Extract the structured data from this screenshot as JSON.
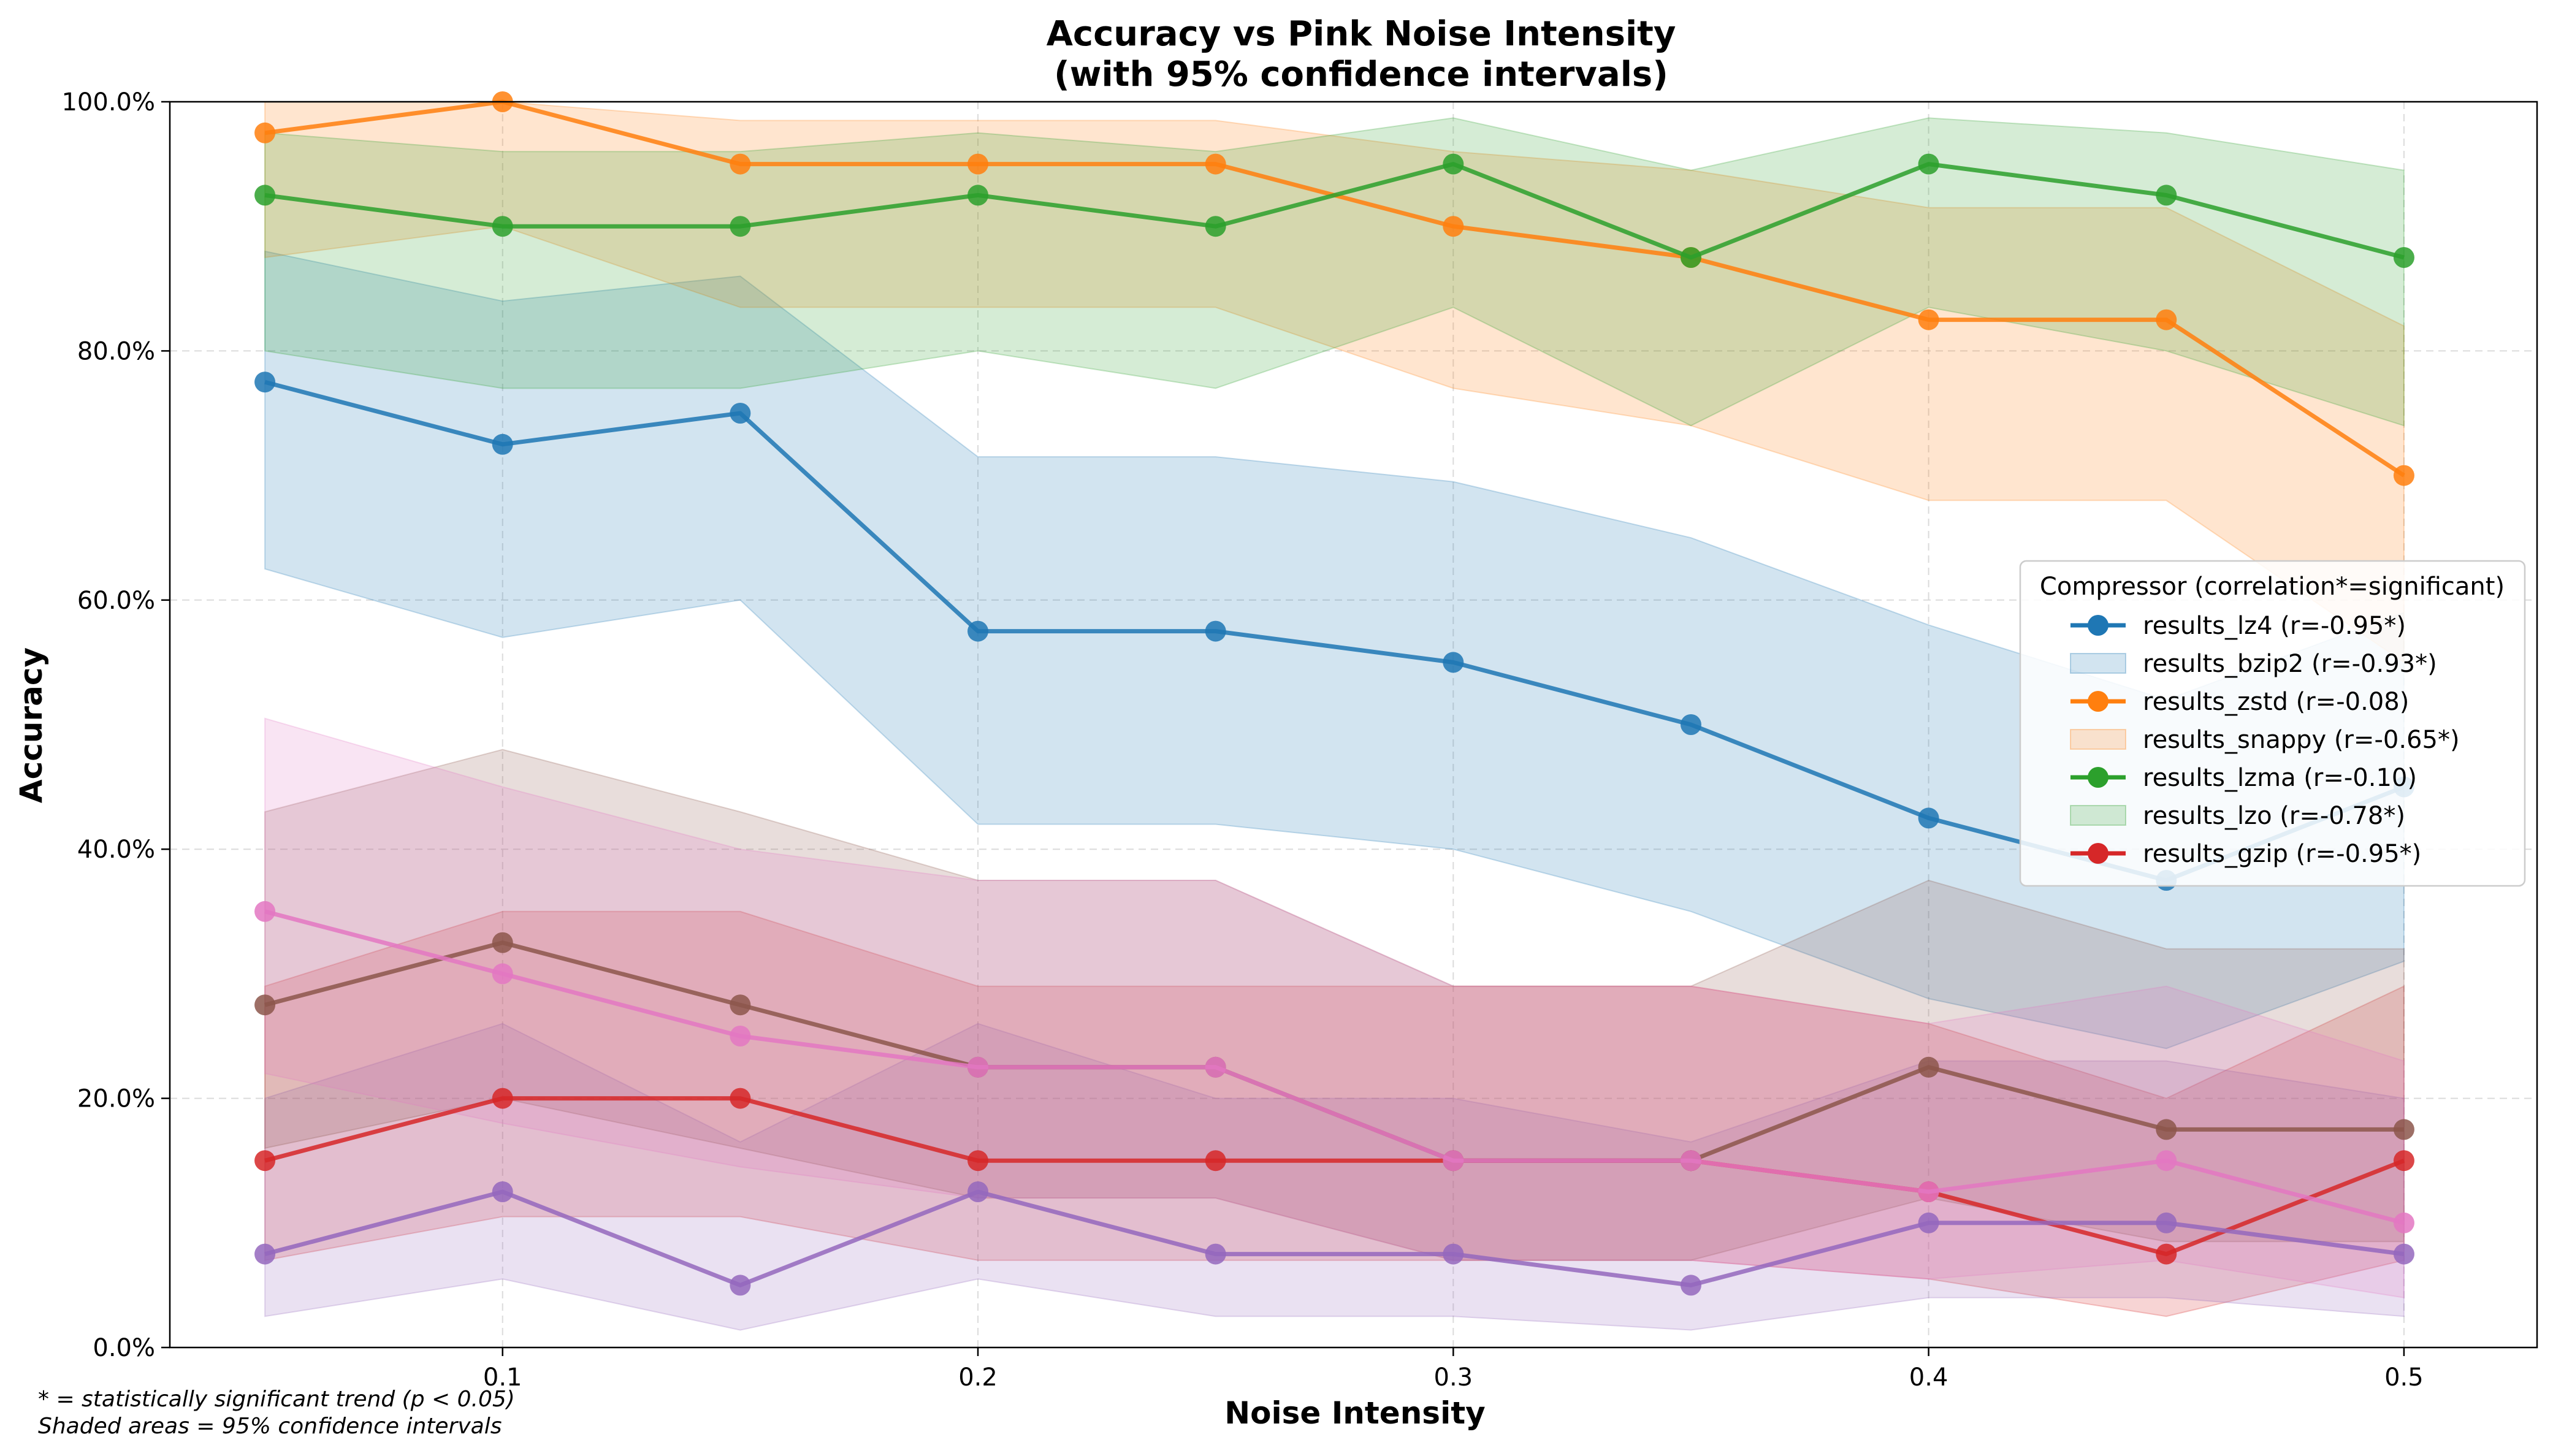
{
  "chart_data": {
    "type": "line",
    "title": "Accuracy vs Pink Noise Intensity",
    "subtitle": "(with 95% confidence intervals)",
    "xlabel": "Noise Intensity",
    "ylabel": "Accuracy",
    "xlim": [
      0.03,
      0.528
    ],
    "ylim": [
      0,
      1
    ],
    "x_ticks": [
      0.1,
      0.2,
      0.3,
      0.4,
      0.5
    ],
    "x_tick_labels": [
      "0.1",
      "0.2",
      "0.3",
      "0.4",
      "0.5"
    ],
    "y_ticks": [
      0,
      0.2,
      0.4,
      0.6,
      0.8,
      1.0
    ],
    "y_tick_labels": [
      "0.0%",
      "20.0%",
      "40.0%",
      "60.0%",
      "80.0%",
      "100.0%"
    ],
    "grid": true,
    "legend_title": "Compressor (correlation*=significant)",
    "legend_placement": "center-right",
    "legend_entries": [
      {
        "label": "results_lz4 (r=-0.95*)",
        "kind": "line",
        "color": "#1f77b4"
      },
      {
        "label": "results_bzip2 (r=-0.93*)",
        "kind": "band",
        "color": "#1f77b4"
      },
      {
        "label": "results_zstd (r=-0.08)",
        "kind": "line",
        "color": "#ff7f0e"
      },
      {
        "label": "results_snappy (r=-0.65*)",
        "kind": "band",
        "color": "#ff7f0e"
      },
      {
        "label": "results_lzma (r=-0.10)",
        "kind": "line",
        "color": "#2ca02c"
      },
      {
        "label": "results_lzo (r=-0.78*)",
        "kind": "band",
        "color": "#2ca02c"
      },
      {
        "label": "results_gzip (r=-0.95*)",
        "kind": "line",
        "color": "#d62728"
      }
    ],
    "x": [
      0.05,
      0.1,
      0.15,
      0.2,
      0.25,
      0.3,
      0.35,
      0.4,
      0.45,
      0.5
    ],
    "series": [
      {
        "color": "#1f77b4",
        "values": [
          0.775,
          0.725,
          0.75,
          0.575,
          0.575,
          0.55,
          0.5,
          0.425,
          0.375,
          0.45
        ],
        "ci_low": [
          0.625,
          0.57,
          0.6,
          0.42,
          0.42,
          0.4,
          0.35,
          0.28,
          0.24,
          0.31
        ],
        "ci_high": [
          0.88,
          0.84,
          0.86,
          0.715,
          0.715,
          0.695,
          0.65,
          0.58,
          0.52,
          0.59
        ]
      },
      {
        "color": "#ff7f0e",
        "values": [
          0.975,
          1.0,
          0.95,
          0.95,
          0.95,
          0.9,
          0.875,
          0.825,
          0.825,
          0.7
        ],
        "ci_low": [
          0.875,
          0.9,
          0.835,
          0.835,
          0.835,
          0.77,
          0.74,
          0.68,
          0.68,
          0.55
        ],
        "ci_high": [
          1.0,
          1.0,
          0.985,
          0.985,
          0.985,
          0.96,
          0.945,
          0.915,
          0.915,
          0.82
        ]
      },
      {
        "color": "#2ca02c",
        "values": [
          0.925,
          0.9,
          0.9,
          0.925,
          0.9,
          0.95,
          0.875,
          0.95,
          0.925,
          0.875
        ],
        "ci_low": [
          0.8,
          0.77,
          0.77,
          0.8,
          0.77,
          0.835,
          0.74,
          0.835,
          0.8,
          0.74
        ],
        "ci_high": [
          0.975,
          0.96,
          0.96,
          0.975,
          0.96,
          0.987,
          0.945,
          0.987,
          0.975,
          0.945
        ]
      },
      {
        "color": "#d62728",
        "values": [
          0.15,
          0.2,
          0.2,
          0.15,
          0.15,
          0.15,
          0.15,
          0.125,
          0.075,
          0.15
        ],
        "ci_low": [
          0.07,
          0.105,
          0.105,
          0.07,
          0.07,
          0.07,
          0.07,
          0.055,
          0.025,
          0.07
        ],
        "ci_high": [
          0.29,
          0.35,
          0.35,
          0.29,
          0.29,
          0.29,
          0.29,
          0.26,
          0.2,
          0.29
        ]
      },
      {
        "color": "#9467bd",
        "values": [
          0.075,
          0.125,
          0.05,
          0.125,
          0.075,
          0.075,
          0.05,
          0.1,
          0.1,
          0.075
        ],
        "ci_low": [
          0.025,
          0.055,
          0.014,
          0.055,
          0.025,
          0.025,
          0.014,
          0.04,
          0.04,
          0.025
        ],
        "ci_high": [
          0.2,
          0.26,
          0.165,
          0.26,
          0.2,
          0.2,
          0.165,
          0.23,
          0.23,
          0.2
        ]
      },
      {
        "color": "#8c564b",
        "values": [
          0.275,
          0.325,
          0.275,
          0.225,
          0.225,
          0.15,
          0.15,
          0.225,
          0.175,
          0.175
        ],
        "ci_low": [
          0.16,
          0.2,
          0.16,
          0.12,
          0.12,
          0.07,
          0.07,
          0.12,
          0.085,
          0.085
        ],
        "ci_high": [
          0.43,
          0.48,
          0.43,
          0.375,
          0.375,
          0.29,
          0.29,
          0.375,
          0.32,
          0.32
        ]
      },
      {
        "color": "#e377c2",
        "values": [
          0.35,
          0.3,
          0.25,
          0.225,
          0.225,
          0.15,
          0.15,
          0.125,
          0.15,
          0.1
        ],
        "ci_low": [
          0.22,
          0.18,
          0.145,
          0.12,
          0.12,
          0.07,
          0.07,
          0.055,
          0.07,
          0.04
        ],
        "ci_high": [
          0.505,
          0.45,
          0.4,
          0.375,
          0.375,
          0.29,
          0.29,
          0.26,
          0.29,
          0.23
        ]
      }
    ],
    "footnotes": [
      "* = statistically significant trend (p < 0.05)",
      "Shaded areas = 95% confidence intervals"
    ]
  }
}
